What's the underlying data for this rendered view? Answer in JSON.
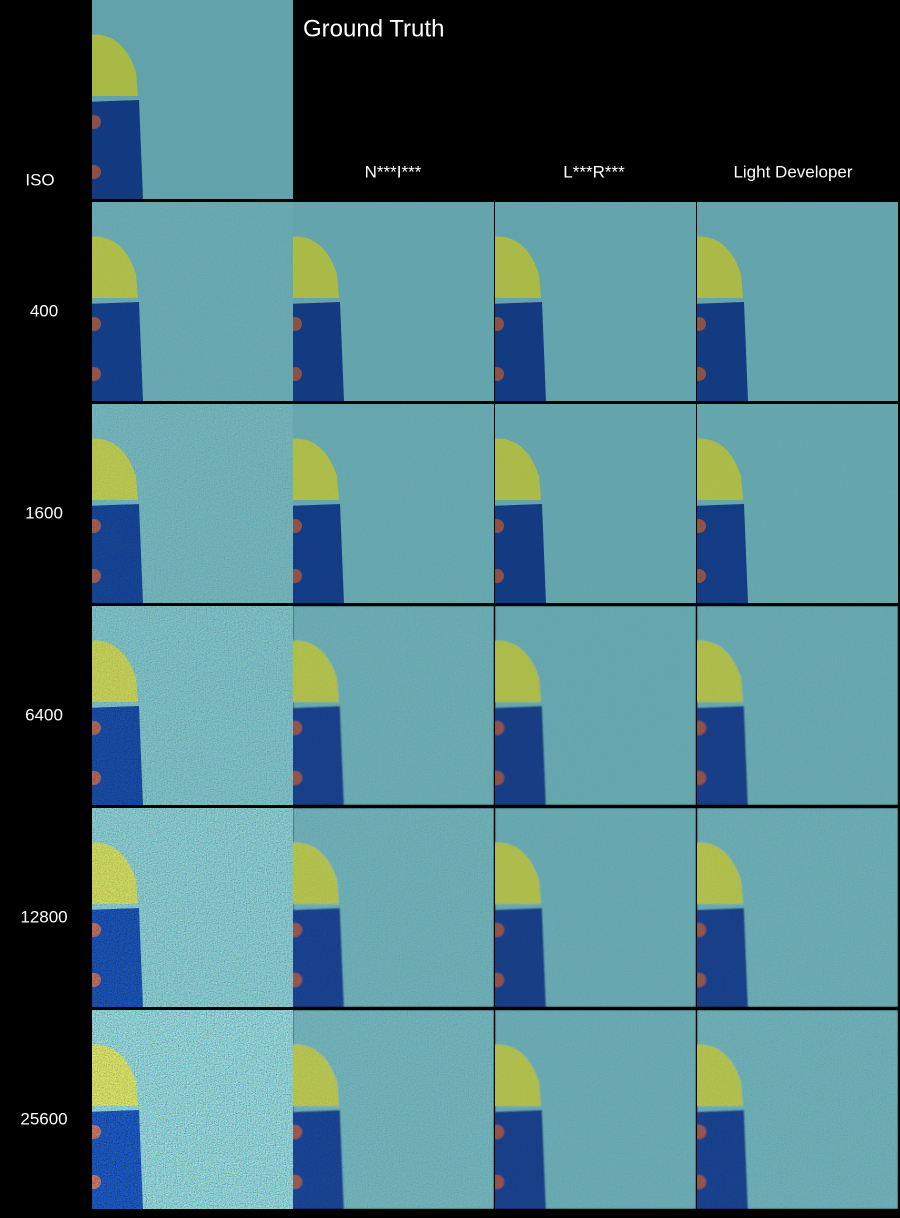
{
  "header": {
    "title": "Ground Truth",
    "row_label": "ISO",
    "columns": [
      "N***I***",
      "L***R***",
      "Light Developer"
    ]
  },
  "rows": [
    {
      "iso": "400"
    },
    {
      "iso": "1600"
    },
    {
      "iso": "6400"
    },
    {
      "iso": "12800"
    },
    {
      "iso": "25600"
    }
  ]
}
